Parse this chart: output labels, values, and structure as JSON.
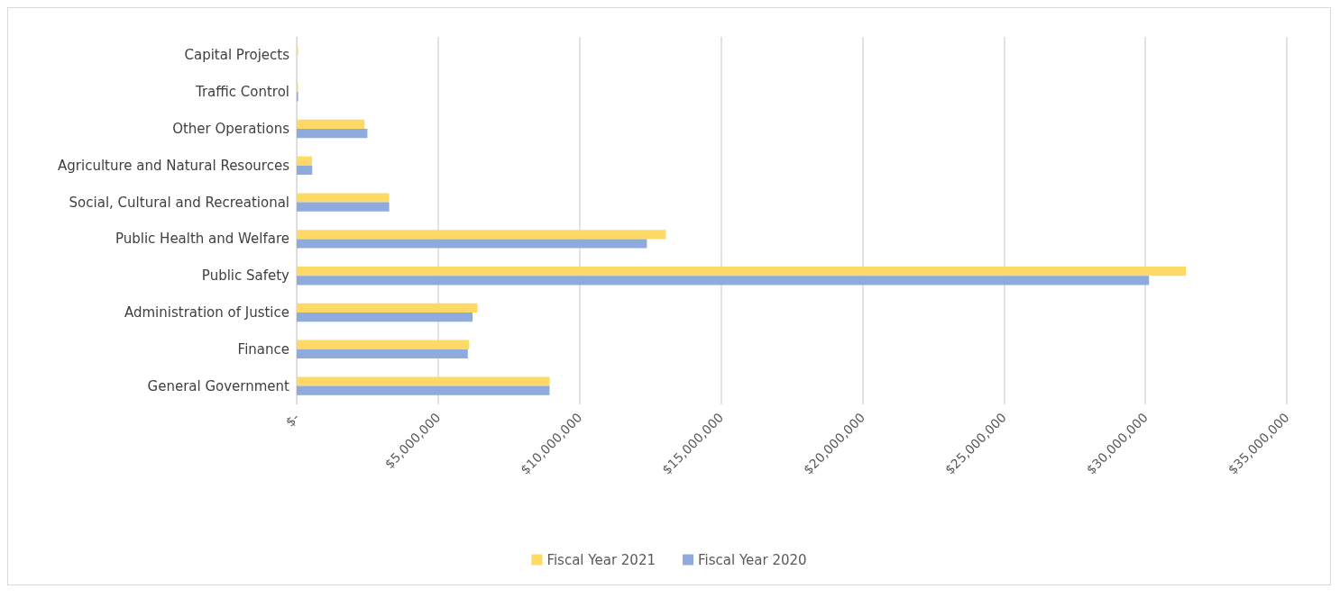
{
  "chart_data": {
    "type": "bar",
    "orientation": "horizontal",
    "categories": [
      "Capital Projects",
      "Traffic Control",
      "Other Operations",
      "Agriculture and Natural Resources",
      "Social, Cultural and Recreational",
      "Public Health and Welfare",
      "Public Safety",
      "Administration of Justice",
      "Finance",
      "General Government"
    ],
    "series": [
      {
        "name": "Fiscal Year 2021",
        "color": "#ffd966",
        "values": [
          50000,
          50000,
          2400000,
          540000,
          3270000,
          13050000,
          31430000,
          6390000,
          6100000,
          8940000
        ]
      },
      {
        "name": "Fiscal Year 2020",
        "color": "#8faadc",
        "values": [
          0,
          50000,
          2500000,
          550000,
          3270000,
          12380000,
          30130000,
          6220000,
          6050000,
          8940000
        ]
      }
    ],
    "xlim": [
      0,
      35000000
    ],
    "xticks": [
      {
        "value": 0,
        "label": "$-"
      },
      {
        "value": 5000000,
        "label": "$5,000,000"
      },
      {
        "value": 10000000,
        "label": "$10,000,000"
      },
      {
        "value": 15000000,
        "label": "$15,000,000"
      },
      {
        "value": 20000000,
        "label": "$20,000,000"
      },
      {
        "value": 25000000,
        "label": "$25,000,000"
      },
      {
        "value": 30000000,
        "label": "$30,000,000"
      },
      {
        "value": 35000000,
        "label": "$35,000,000"
      }
    ],
    "grid": "x",
    "legend": "bottom"
  }
}
